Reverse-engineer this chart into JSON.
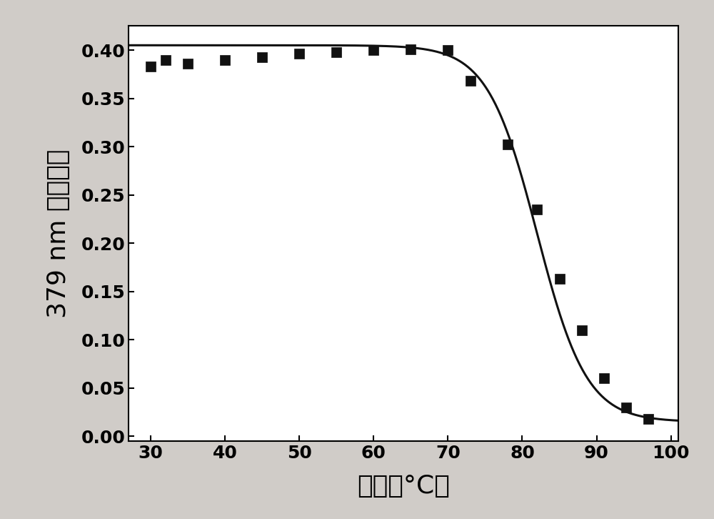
{
  "scatter_x": [
    30,
    32,
    35,
    40,
    45,
    50,
    55,
    60,
    65,
    70,
    73,
    78,
    82,
    85,
    88,
    91,
    94,
    97
  ],
  "scatter_y": [
    0.383,
    0.39,
    0.386,
    0.39,
    0.393,
    0.396,
    0.398,
    0.4,
    0.401,
    0.4,
    0.368,
    0.302,
    0.235,
    0.163,
    0.11,
    0.06,
    0.03,
    0.018
  ],
  "xlabel": "温度（°C）",
  "ylabel": "379 nm 处吸光度",
  "xlim": [
    27,
    101
  ],
  "ylim": [
    -0.005,
    0.425
  ],
  "xticks": [
    30,
    40,
    50,
    60,
    70,
    80,
    90,
    100
  ],
  "yticks": [
    0.0,
    0.05,
    0.1,
    0.15,
    0.2,
    0.25,
    0.3,
    0.35,
    0.4
  ],
  "marker_color": "#111111",
  "line_color": "#111111",
  "background_color": "#d0ccc8",
  "plot_background": "#ffffff",
  "marker_size": 10,
  "line_width": 2.2,
  "xlabel_fontsize": 26,
  "ylabel_fontsize": 26,
  "tick_fontsize": 18,
  "tick_fontweight": "bold"
}
